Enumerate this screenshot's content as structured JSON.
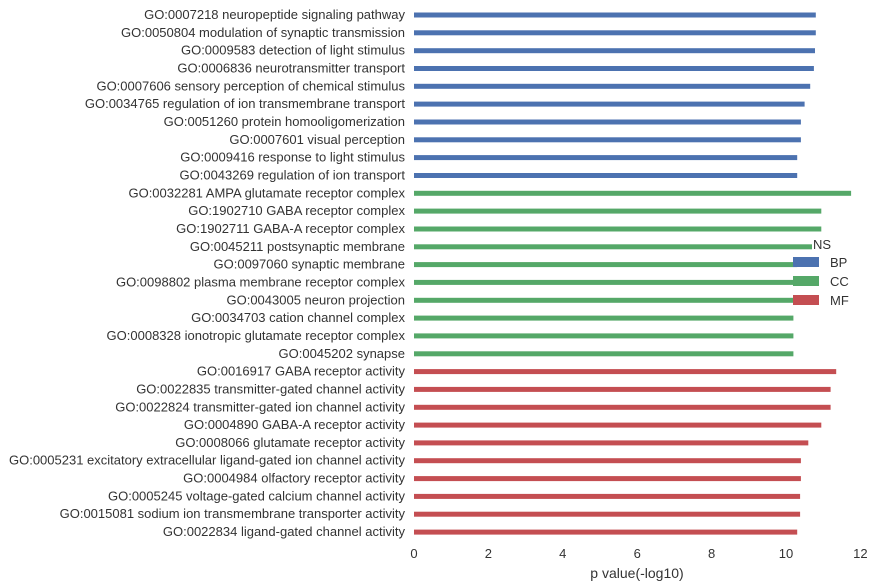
{
  "chart_data": {
    "type": "bar",
    "orientation": "horizontal",
    "xlabel": "p value(-log10)",
    "ylabel": "",
    "xlim": [
      0,
      12
    ],
    "xticks": [
      0,
      2,
      4,
      6,
      8,
      10,
      12
    ],
    "grid": false,
    "legend": {
      "title": "NS",
      "placement": "right",
      "entries": [
        {
          "label": "BP",
          "color": "#4c72b0"
        },
        {
          "label": "CC",
          "color": "#55a868"
        },
        {
          "label": "MF",
          "color": "#c44e52"
        }
      ]
    },
    "categories": [
      {
        "label": "GO:0007218 neuropeptide signaling pathway",
        "value": 10.8,
        "group": "BP"
      },
      {
        "label": "GO:0050804 modulation of synaptic transmission",
        "value": 10.8,
        "group": "BP"
      },
      {
        "label": "GO:0009583 detection of light stimulus",
        "value": 10.78,
        "group": "BP"
      },
      {
        "label": "GO:0006836 neurotransmitter transport",
        "value": 10.75,
        "group": "BP"
      },
      {
        "label": "GO:0007606 sensory perception of chemical stimulus",
        "value": 10.65,
        "group": "BP"
      },
      {
        "label": "GO:0034765 regulation of ion transmembrane transport",
        "value": 10.5,
        "group": "BP"
      },
      {
        "label": "GO:0051260 protein homooligomerization",
        "value": 10.4,
        "group": "BP"
      },
      {
        "label": "GO:0007601 visual perception",
        "value": 10.4,
        "group": "BP"
      },
      {
        "label": "GO:0009416 response to light stimulus",
        "value": 10.3,
        "group": "BP"
      },
      {
        "label": "GO:0043269 regulation of ion transport",
        "value": 10.3,
        "group": "BP"
      },
      {
        "label": "GO:0032281 AMPA glutamate receptor complex",
        "value": 11.75,
        "group": "CC"
      },
      {
        "label": "GO:1902710 GABA receptor complex",
        "value": 10.95,
        "group": "CC"
      },
      {
        "label": "GO:1902711 GABA-A receptor complex",
        "value": 10.95,
        "group": "CC"
      },
      {
        "label": "GO:0045211 postsynaptic membrane",
        "value": 10.7,
        "group": "CC"
      },
      {
        "label": "GO:0097060 synaptic membrane",
        "value": 10.3,
        "group": "CC"
      },
      {
        "label": "GO:0098802 plasma membrane receptor complex",
        "value": 10.25,
        "group": "CC"
      },
      {
        "label": "GO:0043005 neuron projection",
        "value": 10.25,
        "group": "CC"
      },
      {
        "label": "GO:0034703 cation channel complex",
        "value": 10.2,
        "group": "CC"
      },
      {
        "label": "GO:0008328 ionotropic glutamate receptor complex",
        "value": 10.2,
        "group": "CC"
      },
      {
        "label": "GO:0045202 synapse",
        "value": 10.2,
        "group": "CC"
      },
      {
        "label": "GO:0016917 GABA receptor activity",
        "value": 11.35,
        "group": "MF"
      },
      {
        "label": "GO:0022835 transmitter-gated channel activity",
        "value": 11.2,
        "group": "MF"
      },
      {
        "label": "GO:0022824 transmitter-gated ion channel activity",
        "value": 11.2,
        "group": "MF"
      },
      {
        "label": "GO:0004890 GABA-A receptor activity",
        "value": 10.95,
        "group": "MF"
      },
      {
        "label": "GO:0008066 glutamate receptor activity",
        "value": 10.6,
        "group": "MF"
      },
      {
        "label": "GO:0005231 excitatory extracellular ligand-gated ion channel activity",
        "value": 10.4,
        "group": "MF"
      },
      {
        "label": "GO:0004984 olfactory receptor activity",
        "value": 10.4,
        "group": "MF"
      },
      {
        "label": "GO:0005245 voltage-gated calcium channel activity",
        "value": 10.38,
        "group": "MF"
      },
      {
        "label": "GO:0015081 sodium ion transmembrane transporter activity",
        "value": 10.38,
        "group": "MF"
      },
      {
        "label": "GO:0022834 ligand-gated channel activity",
        "value": 10.3,
        "group": "MF"
      }
    ]
  }
}
